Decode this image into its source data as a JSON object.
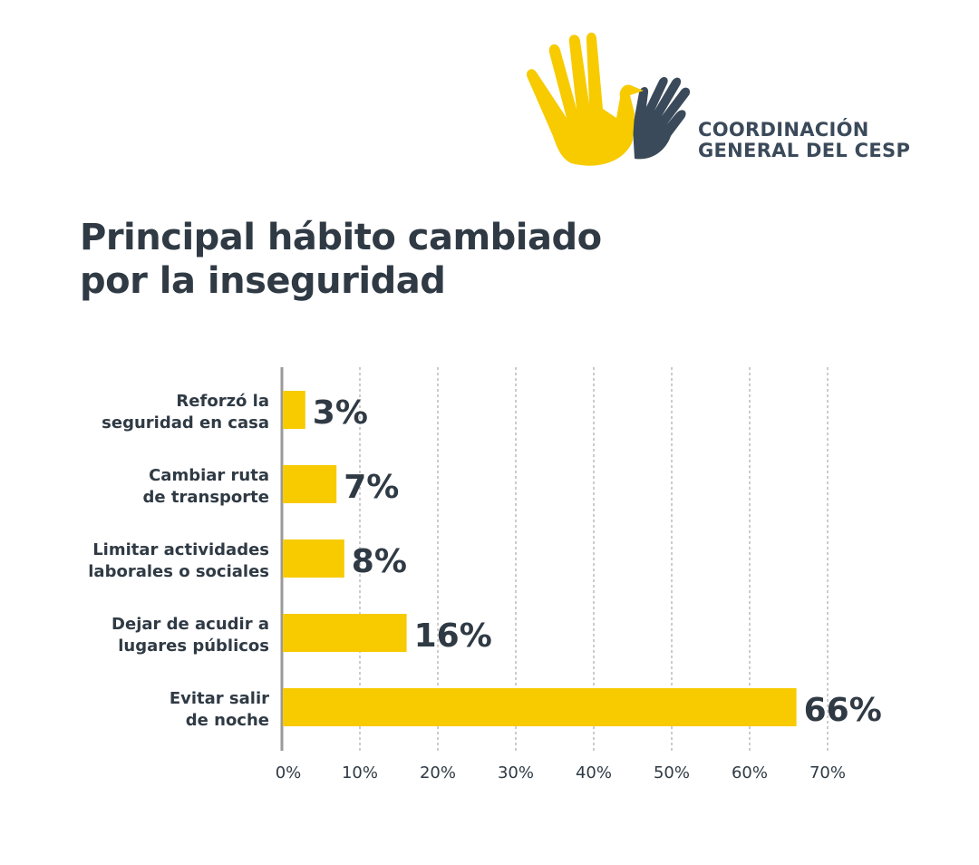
{
  "logo": {
    "line1": "COORDINACIÓN",
    "line2": "GENERAL DEL CESP",
    "colors": {
      "yellow": "#f7cb00",
      "slate": "#3b4a5a"
    }
  },
  "title_lines": [
    "Principal hábito cambiado",
    "por la inseguridad"
  ],
  "chart_data": {
    "type": "bar",
    "orientation": "horizontal",
    "title": "Principal hábito cambiado por la inseguridad",
    "categories": [
      [
        "Reforzó la",
        "seguridad en casa"
      ],
      [
        "Cambiar ruta",
        "de transporte"
      ],
      [
        "Limitar actividades",
        "laborales o sociales"
      ],
      [
        "Dejar de acudir a",
        "lugares públicos"
      ],
      [
        "Evitar salir",
        "de noche"
      ]
    ],
    "values": [
      3,
      7,
      8,
      16,
      66
    ],
    "data_labels": [
      "3%",
      "7%",
      "8%",
      "16%",
      "66%"
    ],
    "xlim": [
      0,
      70
    ],
    "ticks": [
      0,
      10,
      20,
      30,
      40,
      50,
      60,
      70
    ],
    "tick_labels": [
      "0%",
      "10%",
      "20%",
      "30%",
      "40%",
      "50%",
      "60%",
      "70%"
    ],
    "grid": "vertical dashed",
    "bar_color": "#f7cb00",
    "text_color": "#2f3a44"
  }
}
